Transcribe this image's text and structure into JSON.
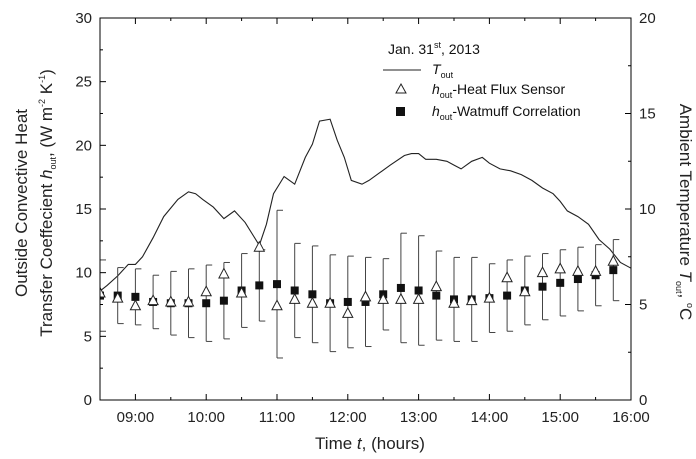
{
  "chart_data": {
    "type": "line",
    "title": "",
    "xlabel": "Time t, (hours)",
    "ylabel_left": "Outside Convective Heat Transfer Coeffecient h_out, (W m^-2 K^-1)",
    "ylabel_right": "Ambient Temperature T_out, °C",
    "xlim": [
      8.5,
      16.0
    ],
    "ylim_left": [
      0,
      30
    ],
    "ylim_right": [
      0,
      20
    ],
    "x_ticks": [
      9,
      10,
      11,
      12,
      13,
      14,
      15,
      16
    ],
    "x_tick_labels": [
      "09:00",
      "10:00",
      "11:00",
      "12:00",
      "13:00",
      "14:00",
      "15:00",
      "16:00"
    ],
    "y_ticks_left": [
      0,
      5,
      10,
      15,
      20,
      25,
      30
    ],
    "y_ticks_right": [
      0,
      5,
      10,
      15,
      20
    ],
    "grid": false,
    "legend_position": "top-right",
    "legend_title": "Jan. 31st, 2013",
    "series": [
      {
        "name": "T_out",
        "axis": "right",
        "style": "line",
        "x": [
          8.5,
          8.6,
          8.75,
          8.9,
          9.0,
          9.1,
          9.25,
          9.4,
          9.6,
          9.75,
          9.85,
          9.95,
          10.1,
          10.25,
          10.4,
          10.55,
          10.75,
          10.85,
          10.95,
          11.1,
          11.25,
          11.4,
          11.5,
          11.6,
          11.75,
          11.85,
          11.95,
          12.05,
          12.2,
          12.3,
          12.45,
          12.6,
          12.8,
          12.9,
          13.0,
          13.1,
          13.25,
          13.4,
          13.5,
          13.6,
          13.75,
          13.9,
          14.0,
          14.15,
          14.3,
          14.45,
          14.6,
          14.75,
          14.9,
          15.0,
          15.1,
          15.25,
          15.4,
          15.55,
          15.7,
          15.85,
          16.0
        ],
        "y": [
          5.7,
          6.0,
          6.5,
          7.1,
          7.1,
          7.5,
          8.5,
          9.6,
          10.5,
          10.9,
          10.8,
          10.5,
          10.1,
          9.5,
          9.9,
          9.3,
          8.1,
          9.2,
          10.8,
          11.7,
          11.3,
          12.7,
          13.4,
          14.6,
          14.7,
          13.6,
          12.7,
          11.5,
          11.3,
          11.5,
          11.9,
          12.3,
          12.8,
          12.9,
          12.9,
          12.6,
          12.6,
          12.5,
          12.3,
          12.1,
          12.5,
          12.7,
          12.4,
          12.1,
          12.0,
          11.8,
          11.5,
          11.1,
          10.8,
          10.4,
          9.9,
          9.6,
          9.2,
          8.4,
          7.9,
          7.2,
          6.9
        ]
      },
      {
        "name": "h_out-Heat Flux Sensor",
        "axis": "left",
        "style": "marker",
        "marker": "open-triangle",
        "x": [
          8.5,
          8.75,
          9.0,
          9.25,
          9.5,
          9.75,
          10.0,
          10.25,
          10.5,
          10.75,
          11.0,
          11.25,
          11.5,
          11.75,
          12.0,
          12.25,
          12.5,
          12.75,
          13.0,
          13.25,
          13.5,
          13.75,
          14.0,
          14.25,
          14.5,
          14.75,
          15.0,
          15.25,
          15.5,
          15.75
        ],
        "y": [
          8.4,
          8.0,
          7.4,
          7.8,
          7.7,
          7.7,
          8.5,
          9.9,
          8.4,
          12.0,
          7.4,
          7.9,
          7.6,
          7.6,
          6.8,
          8.1,
          7.9,
          7.9,
          7.9,
          8.9,
          7.6,
          7.8,
          8.0,
          9.6,
          8.5,
          10.0,
          10.3,
          10.1,
          10.1,
          10.9
        ]
      },
      {
        "name": "h_out-Watmuff Correlation",
        "axis": "left",
        "style": "marker",
        "marker": "filled-square",
        "x": [
          8.5,
          8.75,
          9.0,
          9.25,
          9.5,
          9.75,
          10.0,
          10.25,
          10.5,
          10.75,
          11.0,
          11.25,
          11.5,
          11.75,
          12.0,
          12.25,
          12.5,
          12.75,
          13.0,
          13.25,
          13.5,
          13.75,
          14.0,
          14.25,
          14.5,
          14.75,
          15.0,
          15.25,
          15.5,
          15.75
        ],
        "y": [
          8.2,
          8.2,
          8.1,
          7.7,
          7.6,
          7.6,
          7.6,
          7.8,
          8.6,
          9.0,
          9.1,
          8.6,
          8.3,
          7.6,
          7.7,
          7.7,
          8.3,
          8.8,
          8.6,
          8.2,
          7.9,
          7.9,
          8.0,
          8.2,
          8.6,
          8.9,
          9.2,
          9.5,
          9.8,
          10.2
        ],
        "yerr": [
          2.8,
          2.2,
          2.2,
          2.1,
          2.5,
          2.7,
          3.0,
          3.0,
          2.9,
          2.8,
          5.8,
          3.7,
          3.8,
          3.8,
          3.6,
          3.5,
          2.8,
          4.3,
          4.3,
          3.5,
          3.3,
          3.3,
          2.7,
          2.8,
          2.7,
          2.6,
          2.6,
          2.5,
          2.4,
          2.4
        ]
      }
    ]
  }
}
